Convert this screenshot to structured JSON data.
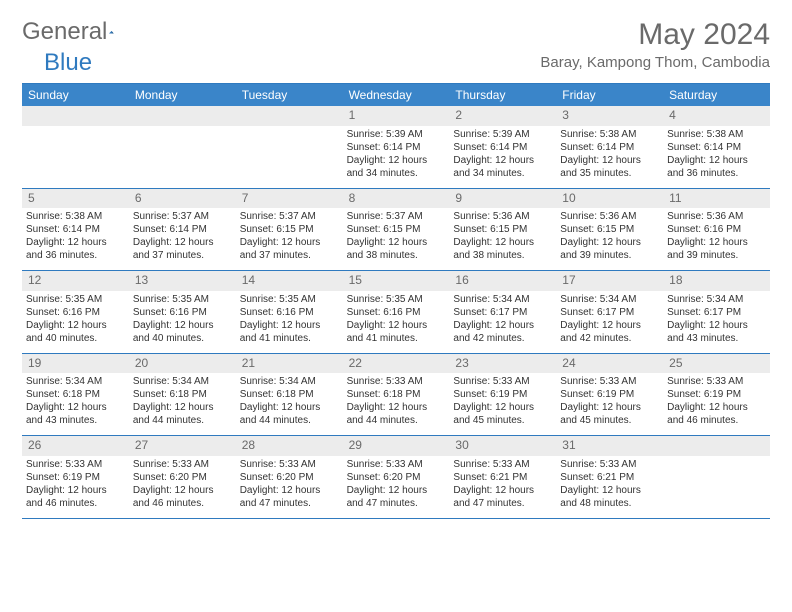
{
  "logo": {
    "text1": "General",
    "text2": "Blue"
  },
  "title": "May 2024",
  "location": "Baray, Kampong Thom, Cambodia",
  "colors": {
    "header_bg": "#3a85c9",
    "header_text": "#ffffff",
    "border": "#2f7abf",
    "daynum_bg": "#ececec",
    "daynum_text": "#6a6a6a",
    "cell_text": "#333333",
    "title_text": "#6a6a6a"
  },
  "day_headers": [
    "Sunday",
    "Monday",
    "Tuesday",
    "Wednesday",
    "Thursday",
    "Friday",
    "Saturday"
  ],
  "weeks": [
    [
      {
        "day": "",
        "sunrise": "",
        "sunset": "",
        "daylight": ""
      },
      {
        "day": "",
        "sunrise": "",
        "sunset": "",
        "daylight": ""
      },
      {
        "day": "",
        "sunrise": "",
        "sunset": "",
        "daylight": ""
      },
      {
        "day": "1",
        "sunrise": "Sunrise: 5:39 AM",
        "sunset": "Sunset: 6:14 PM",
        "daylight": "Daylight: 12 hours and 34 minutes."
      },
      {
        "day": "2",
        "sunrise": "Sunrise: 5:39 AM",
        "sunset": "Sunset: 6:14 PM",
        "daylight": "Daylight: 12 hours and 34 minutes."
      },
      {
        "day": "3",
        "sunrise": "Sunrise: 5:38 AM",
        "sunset": "Sunset: 6:14 PM",
        "daylight": "Daylight: 12 hours and 35 minutes."
      },
      {
        "day": "4",
        "sunrise": "Sunrise: 5:38 AM",
        "sunset": "Sunset: 6:14 PM",
        "daylight": "Daylight: 12 hours and 36 minutes."
      }
    ],
    [
      {
        "day": "5",
        "sunrise": "Sunrise: 5:38 AM",
        "sunset": "Sunset: 6:14 PM",
        "daylight": "Daylight: 12 hours and 36 minutes."
      },
      {
        "day": "6",
        "sunrise": "Sunrise: 5:37 AM",
        "sunset": "Sunset: 6:14 PM",
        "daylight": "Daylight: 12 hours and 37 minutes."
      },
      {
        "day": "7",
        "sunrise": "Sunrise: 5:37 AM",
        "sunset": "Sunset: 6:15 PM",
        "daylight": "Daylight: 12 hours and 37 minutes."
      },
      {
        "day": "8",
        "sunrise": "Sunrise: 5:37 AM",
        "sunset": "Sunset: 6:15 PM",
        "daylight": "Daylight: 12 hours and 38 minutes."
      },
      {
        "day": "9",
        "sunrise": "Sunrise: 5:36 AM",
        "sunset": "Sunset: 6:15 PM",
        "daylight": "Daylight: 12 hours and 38 minutes."
      },
      {
        "day": "10",
        "sunrise": "Sunrise: 5:36 AM",
        "sunset": "Sunset: 6:15 PM",
        "daylight": "Daylight: 12 hours and 39 minutes."
      },
      {
        "day": "11",
        "sunrise": "Sunrise: 5:36 AM",
        "sunset": "Sunset: 6:16 PM",
        "daylight": "Daylight: 12 hours and 39 minutes."
      }
    ],
    [
      {
        "day": "12",
        "sunrise": "Sunrise: 5:35 AM",
        "sunset": "Sunset: 6:16 PM",
        "daylight": "Daylight: 12 hours and 40 minutes."
      },
      {
        "day": "13",
        "sunrise": "Sunrise: 5:35 AM",
        "sunset": "Sunset: 6:16 PM",
        "daylight": "Daylight: 12 hours and 40 minutes."
      },
      {
        "day": "14",
        "sunrise": "Sunrise: 5:35 AM",
        "sunset": "Sunset: 6:16 PM",
        "daylight": "Daylight: 12 hours and 41 minutes."
      },
      {
        "day": "15",
        "sunrise": "Sunrise: 5:35 AM",
        "sunset": "Sunset: 6:16 PM",
        "daylight": "Daylight: 12 hours and 41 minutes."
      },
      {
        "day": "16",
        "sunrise": "Sunrise: 5:34 AM",
        "sunset": "Sunset: 6:17 PM",
        "daylight": "Daylight: 12 hours and 42 minutes."
      },
      {
        "day": "17",
        "sunrise": "Sunrise: 5:34 AM",
        "sunset": "Sunset: 6:17 PM",
        "daylight": "Daylight: 12 hours and 42 minutes."
      },
      {
        "day": "18",
        "sunrise": "Sunrise: 5:34 AM",
        "sunset": "Sunset: 6:17 PM",
        "daylight": "Daylight: 12 hours and 43 minutes."
      }
    ],
    [
      {
        "day": "19",
        "sunrise": "Sunrise: 5:34 AM",
        "sunset": "Sunset: 6:18 PM",
        "daylight": "Daylight: 12 hours and 43 minutes."
      },
      {
        "day": "20",
        "sunrise": "Sunrise: 5:34 AM",
        "sunset": "Sunset: 6:18 PM",
        "daylight": "Daylight: 12 hours and 44 minutes."
      },
      {
        "day": "21",
        "sunrise": "Sunrise: 5:34 AM",
        "sunset": "Sunset: 6:18 PM",
        "daylight": "Daylight: 12 hours and 44 minutes."
      },
      {
        "day": "22",
        "sunrise": "Sunrise: 5:33 AM",
        "sunset": "Sunset: 6:18 PM",
        "daylight": "Daylight: 12 hours and 44 minutes."
      },
      {
        "day": "23",
        "sunrise": "Sunrise: 5:33 AM",
        "sunset": "Sunset: 6:19 PM",
        "daylight": "Daylight: 12 hours and 45 minutes."
      },
      {
        "day": "24",
        "sunrise": "Sunrise: 5:33 AM",
        "sunset": "Sunset: 6:19 PM",
        "daylight": "Daylight: 12 hours and 45 minutes."
      },
      {
        "day": "25",
        "sunrise": "Sunrise: 5:33 AM",
        "sunset": "Sunset: 6:19 PM",
        "daylight": "Daylight: 12 hours and 46 minutes."
      }
    ],
    [
      {
        "day": "26",
        "sunrise": "Sunrise: 5:33 AM",
        "sunset": "Sunset: 6:19 PM",
        "daylight": "Daylight: 12 hours and 46 minutes."
      },
      {
        "day": "27",
        "sunrise": "Sunrise: 5:33 AM",
        "sunset": "Sunset: 6:20 PM",
        "daylight": "Daylight: 12 hours and 46 minutes."
      },
      {
        "day": "28",
        "sunrise": "Sunrise: 5:33 AM",
        "sunset": "Sunset: 6:20 PM",
        "daylight": "Daylight: 12 hours and 47 minutes."
      },
      {
        "day": "29",
        "sunrise": "Sunrise: 5:33 AM",
        "sunset": "Sunset: 6:20 PM",
        "daylight": "Daylight: 12 hours and 47 minutes."
      },
      {
        "day": "30",
        "sunrise": "Sunrise: 5:33 AM",
        "sunset": "Sunset: 6:21 PM",
        "daylight": "Daylight: 12 hours and 47 minutes."
      },
      {
        "day": "31",
        "sunrise": "Sunrise: 5:33 AM",
        "sunset": "Sunset: 6:21 PM",
        "daylight": "Daylight: 12 hours and 48 minutes."
      },
      {
        "day": "",
        "sunrise": "",
        "sunset": "",
        "daylight": ""
      }
    ]
  ]
}
